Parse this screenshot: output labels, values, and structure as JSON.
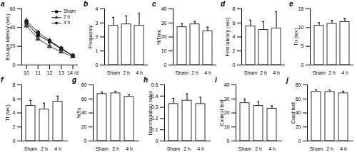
{
  "chart_data": [
    {
      "type": "line",
      "title": "a",
      "ylabel": "Escape latency (sec)",
      "x": [
        10,
        11,
        12,
        13,
        14
      ],
      "xlim": [
        9.6,
        14.4
      ],
      "xticks": [
        10,
        11,
        12,
        13,
        {
          "value": 14,
          "label": "14 /d"
        }
      ],
      "ylim": [
        0,
        60
      ],
      "yticks": [
        0,
        20,
        40,
        60
      ],
      "legend": "upper right",
      "series": [
        {
          "name": "Sham",
          "color": "#000000",
          "marker": "square",
          "values": [
            45,
            32,
            25,
            17,
            10
          ],
          "errors": [
            4,
            3,
            3,
            2,
            2
          ]
        },
        {
          "name": "2 h",
          "color": "#444444",
          "marker": "triangle",
          "values": [
            42,
            28,
            20,
            14,
            9
          ],
          "errors": [
            4,
            3,
            3,
            2,
            2
          ]
        },
        {
          "name": "4 h",
          "color": "#222222",
          "marker": "circle",
          "values": [
            47,
            35,
            26,
            18,
            10
          ],
          "errors": [
            4,
            3,
            3,
            2,
            2
          ]
        }
      ]
    },
    {
      "type": "bar",
      "title": "b",
      "ylabel": "Frequency",
      "categories": [
        "Sham",
        "2 h",
        "4 h"
      ],
      "values": [
        2.8,
        2.9,
        2.8
      ],
      "errors": [
        0.6,
        0.6,
        0.9
      ],
      "color": "#ffffff",
      "ylim": [
        0,
        4
      ],
      "yticks": [
        0,
        1,
        2,
        3,
        4
      ]
    },
    {
      "type": "bar",
      "title": "c",
      "ylabel": "%Time",
      "categories": [
        "Sham",
        "2 h",
        "4 h"
      ],
      "values": [
        27,
        29,
        24
      ],
      "errors": [
        2.5,
        2,
        3
      ],
      "color": "#ffffff",
      "ylim": [
        0,
        40
      ],
      "yticks": [
        0,
        10,
        20,
        30,
        40
      ]
    },
    {
      "type": "bar",
      "title": "d",
      "ylabel": "First latency (sec)",
      "categories": [
        "Sham",
        "2 h",
        "4 h"
      ],
      "values": [
        5.5,
        5.0,
        5.2
      ],
      "errors": [
        0.9,
        1.2,
        2.4
      ],
      "color": "#ffffff",
      "ylim": [
        0,
        8
      ],
      "yticks": [
        0,
        2,
        4,
        6,
        8
      ]
    },
    {
      "type": "bar",
      "title": "e",
      "ylabel": "Tn (sec)",
      "categories": [
        "Sham",
        "2 h",
        "4 h"
      ],
      "values": [
        10.5,
        11,
        11.5
      ],
      "errors": [
        0.8,
        0.9,
        1.0
      ],
      "color": "#ffffff",
      "ylim": [
        0,
        15
      ],
      "yticks": [
        0,
        5,
        10,
        15
      ]
    },
    {
      "type": "bar",
      "title": "f",
      "ylabel": "Tf (sec)",
      "categories": [
        "Sham",
        "2 h",
        "4 h"
      ],
      "values": [
        5.0,
        4.5,
        5.6
      ],
      "errors": [
        0.8,
        0.9,
        0.8
      ],
      "color": "#ffffff",
      "ylim": [
        0,
        8
      ],
      "yticks": [
        0,
        2,
        4,
        6,
        8
      ]
    },
    {
      "type": "bar",
      "title": "g",
      "ylabel": "%Tn",
      "categories": [
        "Sham",
        "2 h",
        "4 h"
      ],
      "values": [
        67,
        68,
        63
      ],
      "errors": [
        3,
        3,
        3
      ],
      "color": "#ffffff",
      "ylim": [
        0,
        80
      ],
      "yticks": [
        0,
        20,
        40,
        60,
        80
      ]
    },
    {
      "type": "bar",
      "title": "h",
      "ylabel": "Discrimination index",
      "categories": [
        "Sham",
        "2 h",
        "4 h"
      ],
      "values": [
        0.33,
        0.36,
        0.33
      ],
      "errors": [
        0.05,
        0.06,
        0.06
      ],
      "color": "#ffffff",
      "ylim": [
        0,
        0.5
      ],
      "yticks": [
        0,
        0.1,
        0.2,
        0.3,
        0.4,
        0.5
      ]
    },
    {
      "type": "bar",
      "title": "i",
      "ylabel": "Context test",
      "categories": [
        "Sham",
        "2 h",
        "4 h"
      ],
      "values": [
        27,
        25,
        23
      ],
      "errors": [
        3,
        3,
        2
      ],
      "color": "#ffffff",
      "ylim": [
        0,
        40
      ],
      "yticks": [
        0,
        10,
        20,
        30,
        40
      ]
    },
    {
      "type": "bar",
      "title": "j",
      "ylabel": "Cued test",
      "categories": [
        "Sham",
        "2 h",
        "4 h"
      ],
      "values": [
        70,
        70,
        68
      ],
      "errors": [
        3,
        3,
        3
      ],
      "color": "#ffffff",
      "ylim": [
        0,
        80
      ],
      "yticks": [
        0,
        20,
        40,
        60,
        80
      ]
    }
  ]
}
